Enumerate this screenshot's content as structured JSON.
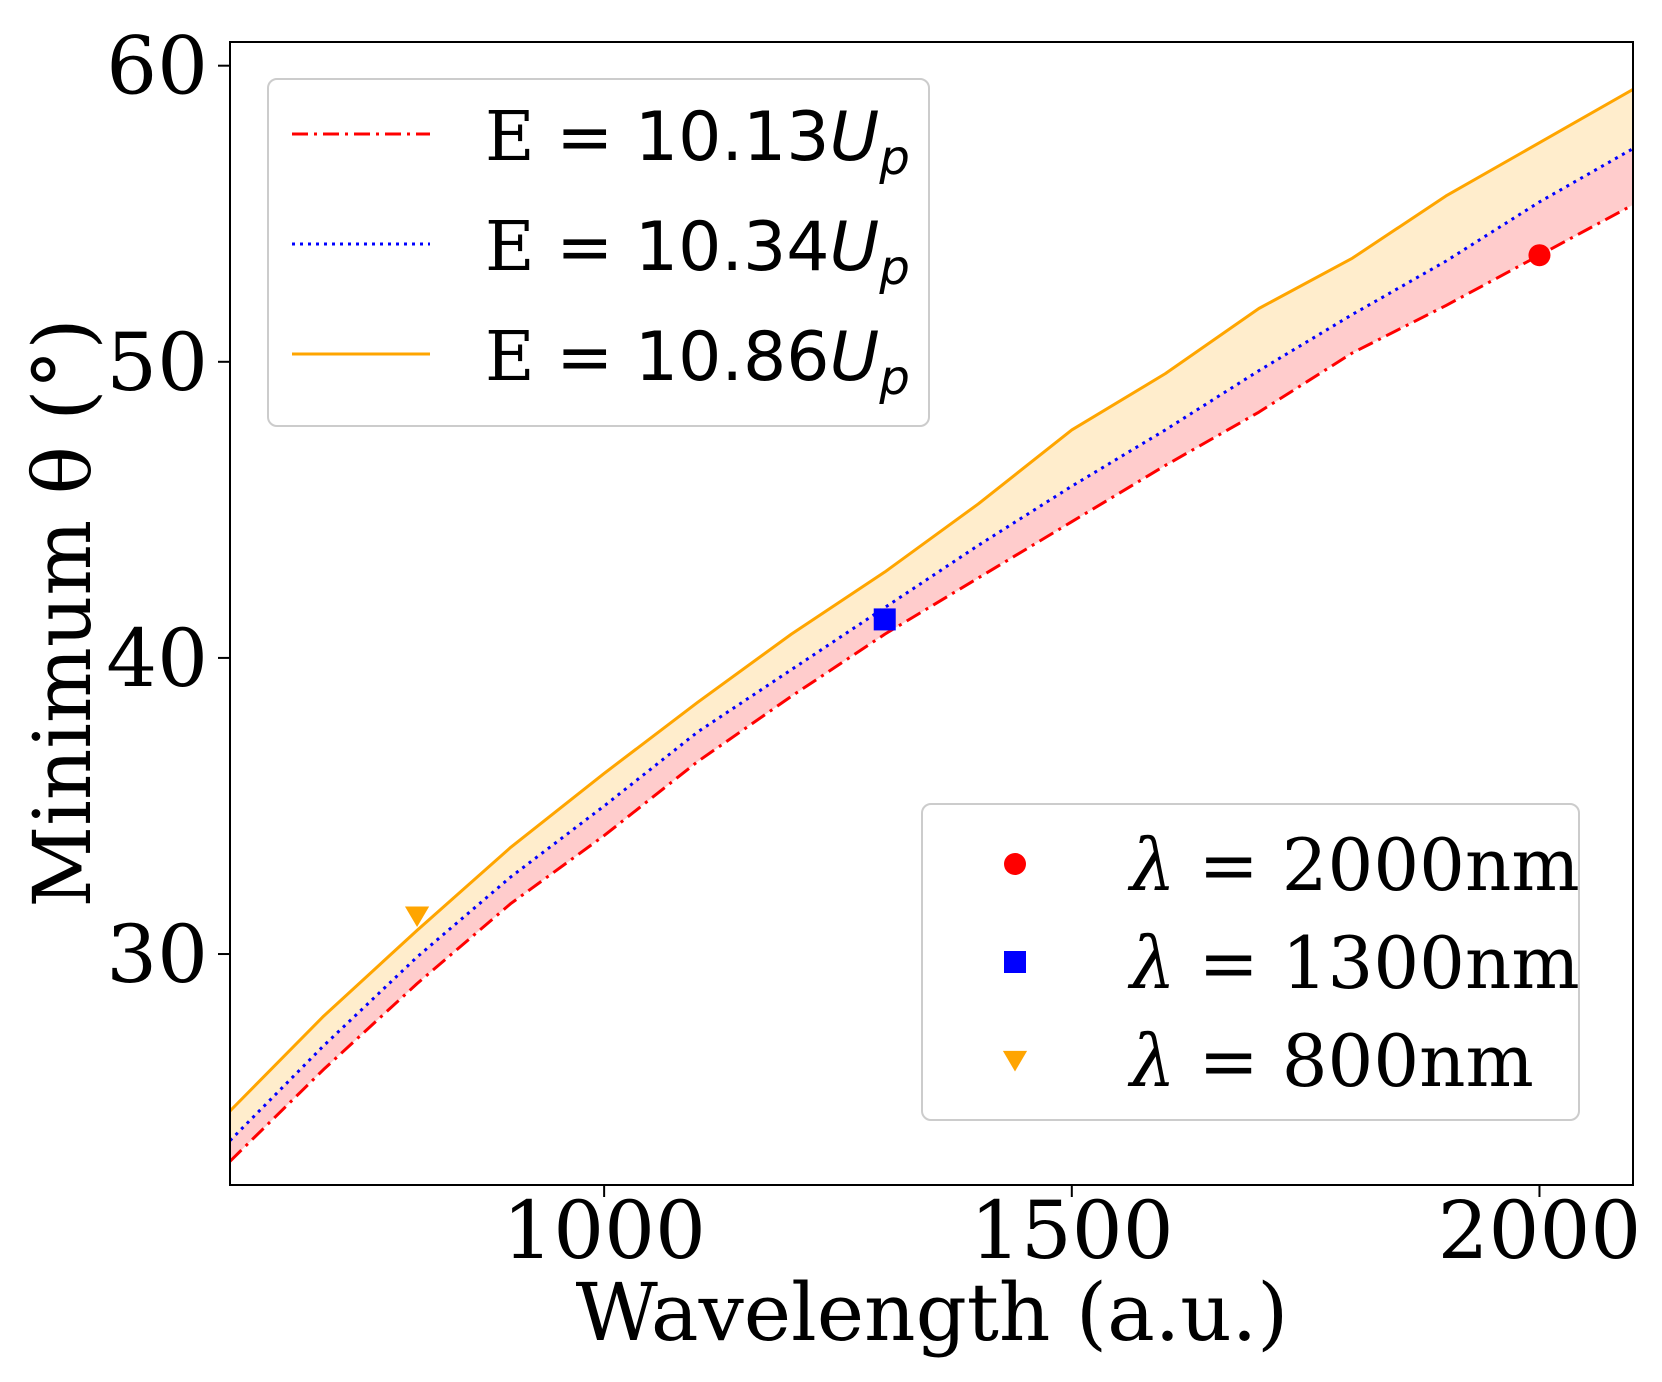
{
  "chart_data": {
    "type": "line",
    "title": "",
    "xlabel": "Wavelength (a.u.)",
    "ylabel": "Minimum θ (°)",
    "xlim": [
      600,
      2100
    ],
    "ylim": [
      22.2,
      60.8
    ],
    "xticks": [
      1000,
      1500,
      2000
    ],
    "yticks": [
      30,
      40,
      50,
      60
    ],
    "grid": false,
    "x": [
      600,
      700,
      800,
      900,
      1000,
      1100,
      1200,
      1300,
      1400,
      1500,
      1600,
      1700,
      1800,
      1900,
      2000,
      2100
    ],
    "series": [
      {
        "name": "E = 10.13U_p",
        "label_prefix": "E = 10.13",
        "label_math": "U",
        "label_sub": "p",
        "color": "#ff0000",
        "dash": "dashdot",
        "values": [
          23.0,
          26.1,
          29.0,
          31.7,
          34.0,
          36.5,
          38.7,
          40.8,
          42.7,
          44.6,
          46.5,
          48.3,
          50.3,
          51.9,
          53.6,
          55.3
        ]
      },
      {
        "name": "E = 10.34U_p",
        "label_prefix": "E = 10.34",
        "label_math": "U",
        "label_sub": "p",
        "color": "#0000ff",
        "dash": "dotted",
        "values": [
          23.7,
          26.9,
          29.9,
          32.6,
          35.0,
          37.5,
          39.6,
          41.7,
          43.8,
          45.8,
          47.7,
          49.7,
          51.6,
          53.4,
          55.4,
          57.2
        ]
      },
      {
        "name": "E = 10.86U_p",
        "label_prefix": "E = 10.86",
        "label_math": "U",
        "label_sub": "p",
        "color": "#ffa500",
        "dash": "solid",
        "values": [
          24.7,
          27.9,
          30.8,
          33.6,
          36.1,
          38.5,
          40.8,
          42.9,
          45.2,
          47.7,
          49.6,
          51.8,
          53.5,
          55.6,
          57.4,
          59.2
        ]
      }
    ],
    "fills": [
      {
        "between": [
          "E = 10.13U_p",
          "E = 10.34U_p"
        ],
        "color": "#ff0000",
        "alpha": 0.2
      },
      {
        "between": [
          "E = 10.34U_p",
          "E = 10.86U_p"
        ],
        "color": "#ffa500",
        "alpha": 0.2
      }
    ],
    "markers": [
      {
        "label": "λ = 2000nm",
        "prefix": "λ",
        "rest": " = 2000nm",
        "x": 2000,
        "y": 53.6,
        "shape": "circle",
        "color": "#ff0000"
      },
      {
        "label": "λ = 1300nm",
        "prefix": "λ",
        "rest": " = 1300nm",
        "x": 1300,
        "y": 41.3,
        "shape": "square",
        "color": "#0000ff"
      },
      {
        "label": "λ = 800nm",
        "prefix": "λ",
        "rest": " = 800nm",
        "x": 800,
        "y": 31.3,
        "shape": "triangle-down",
        "color": "#ffa500"
      }
    ],
    "legend_lines_position": "upper-left",
    "legend_markers_position": "lower-right"
  }
}
